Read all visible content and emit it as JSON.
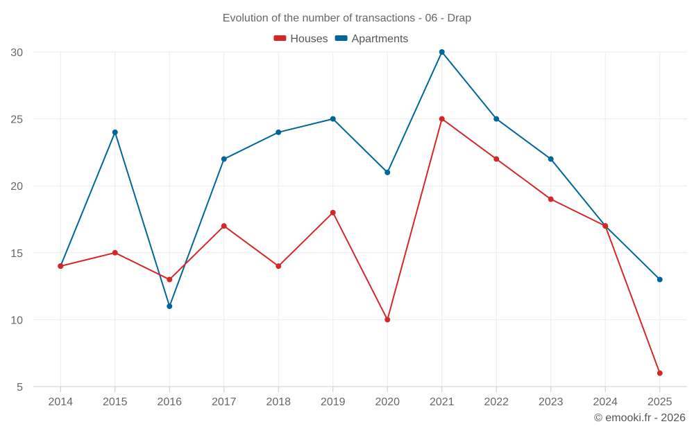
{
  "chart_data": {
    "type": "line",
    "title": "Evolution of the number of transactions - 06 - Drap",
    "categories": [
      "2014",
      "2015",
      "2016",
      "2017",
      "2018",
      "2019",
      "2020",
      "2021",
      "2022",
      "2023",
      "2024",
      "2025"
    ],
    "series": [
      {
        "name": "Houses",
        "color": "#d62728",
        "values": [
          14,
          15,
          13,
          17,
          14,
          18,
          10,
          25,
          22,
          19,
          17,
          6
        ]
      },
      {
        "name": "Apartments",
        "color": "#006699",
        "values": [
          14,
          24,
          11,
          22,
          24,
          25,
          21,
          30,
          25,
          22,
          17,
          13
        ]
      }
    ],
    "ylim": [
      5,
      30
    ],
    "yticks": [
      5,
      10,
      15,
      20,
      25,
      30
    ],
    "grid": true,
    "legend": "top-center",
    "xlabel": "",
    "ylabel": ""
  },
  "credit": "© emooki.fr - 2026"
}
